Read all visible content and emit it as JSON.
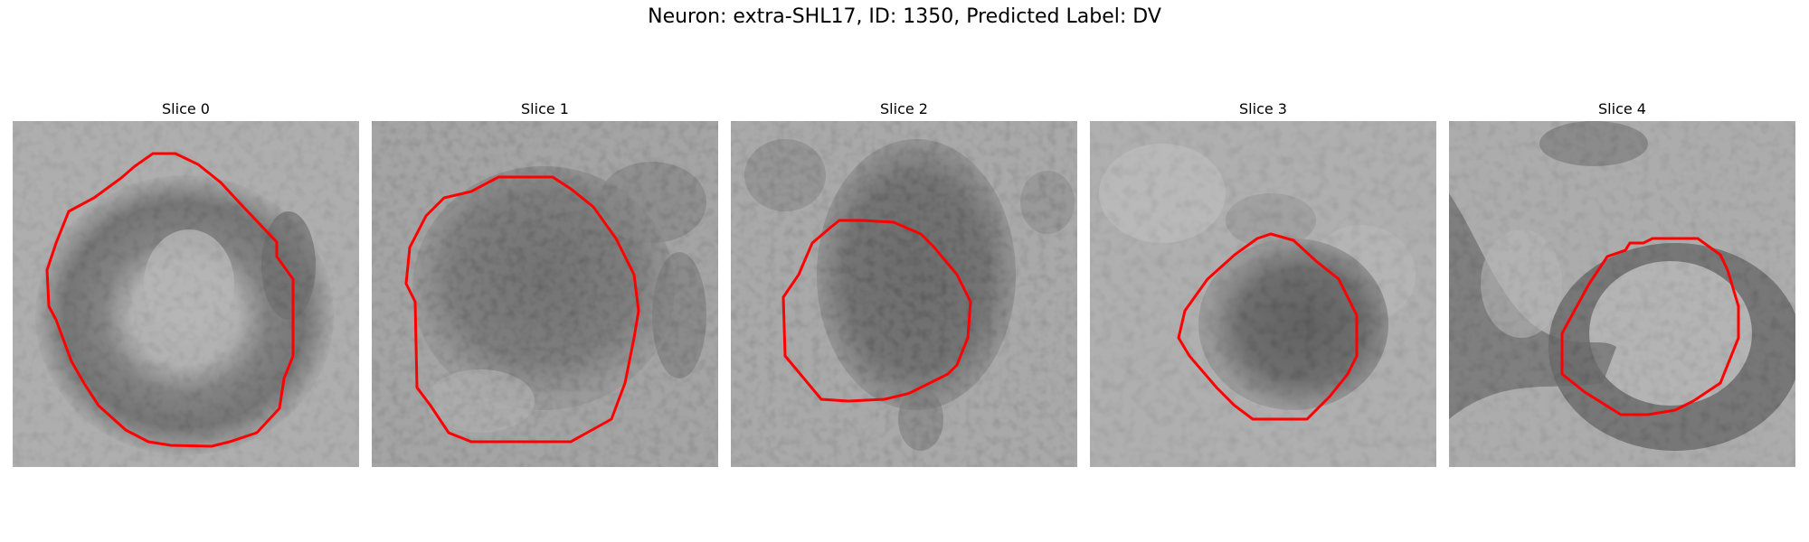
{
  "figure": {
    "title": "Neuron: extra-SHL17, ID: 1350, Predicted Label: DV"
  },
  "colors": {
    "background": "#ffffff",
    "contour": "#ff0000"
  },
  "panels": [
    {
      "label": "Slice 0"
    },
    {
      "label": "Slice 1"
    },
    {
      "label": "Slice 2"
    },
    {
      "label": "Slice 3"
    },
    {
      "label": "Slice 4"
    }
  ]
}
